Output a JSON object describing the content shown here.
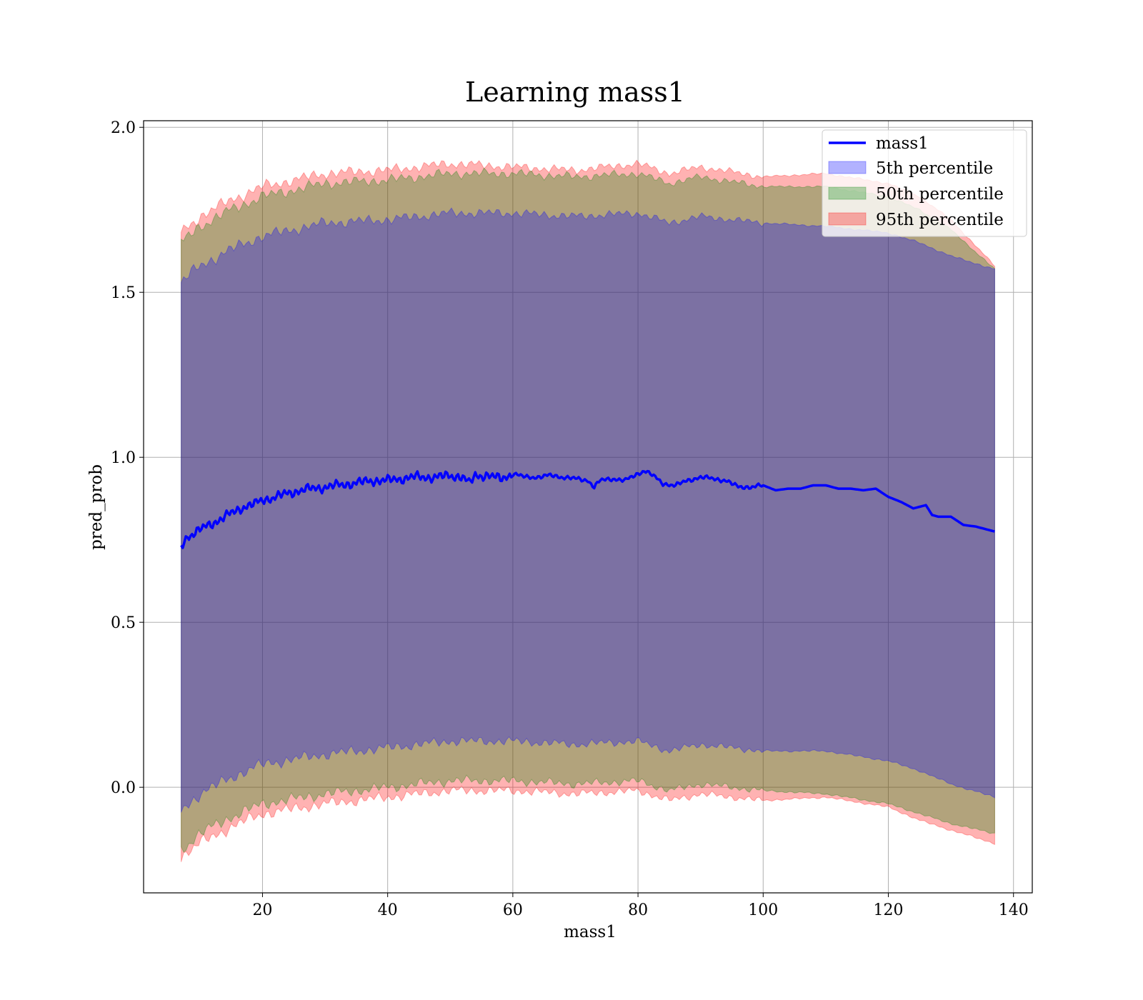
{
  "chart_data": {
    "type": "line",
    "title": "Learning mass1",
    "xlabel": "mass1",
    "ylabel": "pred_prob",
    "xlim": [
      1,
      143
    ],
    "ylim": [
      -0.32,
      2.02
    ],
    "xticks": [
      20,
      40,
      60,
      80,
      100,
      120,
      140
    ],
    "yticks": [
      0.0,
      0.5,
      1.0,
      1.5,
      2.0
    ],
    "ytick_labels": [
      "0.0",
      "0.5",
      "1.0",
      "1.5",
      "2.0"
    ],
    "grid": true,
    "legend_position": "top-right",
    "legend": [
      "mass1",
      "5th percentile",
      "50th percentile",
      "95th percentile"
    ],
    "line": {
      "name": "mass1",
      "color": "#0000ff",
      "x": [
        7,
        8,
        9,
        10,
        11,
        12,
        13,
        14,
        15,
        16,
        17,
        18,
        19,
        20,
        22,
        24,
        26,
        28,
        30,
        32,
        34,
        36,
        38,
        40,
        42,
        44,
        46,
        48,
        50,
        52,
        53,
        54,
        56,
        58,
        60,
        62,
        64,
        66,
        68,
        70,
        72,
        73,
        74,
        76,
        78,
        80,
        81,
        82,
        84,
        86,
        88,
        90,
        92,
        94,
        96,
        98,
        100,
        102,
        104,
        106,
        108,
        110,
        112,
        114,
        116,
        118,
        120,
        122,
        124,
        126,
        127,
        128,
        130,
        132,
        134,
        137
      ],
      "y": [
        0.73,
        0.76,
        0.77,
        0.78,
        0.79,
        0.8,
        0.81,
        0.82,
        0.83,
        0.84,
        0.85,
        0.855,
        0.86,
        0.87,
        0.88,
        0.89,
        0.9,
        0.905,
        0.91,
        0.915,
        0.92,
        0.925,
        0.93,
        0.93,
        0.935,
        0.94,
        0.94,
        0.94,
        0.945,
        0.94,
        0.92,
        0.945,
        0.945,
        0.935,
        0.95,
        0.94,
        0.94,
        0.945,
        0.94,
        0.935,
        0.93,
        0.91,
        0.93,
        0.935,
        0.93,
        0.95,
        0.96,
        0.95,
        0.92,
        0.915,
        0.93,
        0.94,
        0.935,
        0.93,
        0.91,
        0.91,
        0.915,
        0.9,
        0.905,
        0.905,
        0.915,
        0.915,
        0.905,
        0.905,
        0.9,
        0.905,
        0.88,
        0.865,
        0.845,
        0.855,
        0.825,
        0.82,
        0.82,
        0.795,
        0.79,
        0.775
      ]
    },
    "series": [
      {
        "name": "5th percentile",
        "color": "#0000ff",
        "x": [
          7,
          10,
          15,
          20,
          30,
          40,
          50,
          60,
          70,
          80,
          85,
          90,
          100,
          110,
          120,
          125,
          130,
          137
        ],
        "upper": [
          1.53,
          1.58,
          1.63,
          1.67,
          1.71,
          1.72,
          1.74,
          1.74,
          1.73,
          1.74,
          1.71,
          1.73,
          1.71,
          1.7,
          1.68,
          1.65,
          1.61,
          1.57
        ],
        "lower": [
          -0.07,
          -0.02,
          0.03,
          0.07,
          0.1,
          0.12,
          0.14,
          0.14,
          0.13,
          0.14,
          0.11,
          0.13,
          0.11,
          0.11,
          0.08,
          0.05,
          0.01,
          -0.03
        ]
      },
      {
        "name": "50th percentile",
        "color": "#008000",
        "x": [
          7,
          10,
          15,
          20,
          30,
          40,
          50,
          60,
          70,
          80,
          85,
          90,
          100,
          110,
          120,
          125,
          130,
          137
        ],
        "upper": [
          1.65,
          1.7,
          1.75,
          1.79,
          1.83,
          1.84,
          1.86,
          1.86,
          1.85,
          1.86,
          1.83,
          1.85,
          1.82,
          1.82,
          1.79,
          1.75,
          1.69,
          1.57
        ],
        "lower": [
          -0.19,
          -0.14,
          -0.09,
          -0.05,
          -0.02,
          0.0,
          0.02,
          0.02,
          0.01,
          0.02,
          -0.01,
          0.01,
          -0.01,
          -0.02,
          -0.05,
          -0.08,
          -0.11,
          -0.14
        ]
      },
      {
        "name": "95th percentile",
        "color": "#ff0000",
        "x": [
          7,
          10,
          15,
          20,
          30,
          40,
          50,
          60,
          70,
          80,
          85,
          90,
          100,
          110,
          120,
          125,
          130,
          137
        ],
        "upper": [
          1.68,
          1.73,
          1.78,
          1.82,
          1.86,
          1.87,
          1.89,
          1.88,
          1.87,
          1.89,
          1.86,
          1.88,
          1.85,
          1.86,
          1.83,
          1.79,
          1.72,
          1.58
        ],
        "lower": [
          -0.21,
          -0.17,
          -0.12,
          -0.08,
          -0.05,
          -0.03,
          -0.01,
          -0.01,
          -0.02,
          -0.01,
          -0.04,
          -0.02,
          -0.04,
          -0.03,
          -0.06,
          -0.1,
          -0.13,
          -0.17
        ]
      }
    ]
  }
}
